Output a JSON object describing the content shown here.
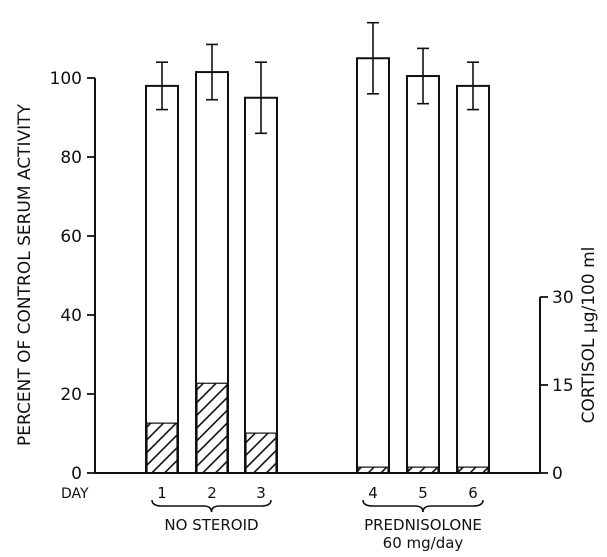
{
  "chart_data": {
    "type": "bar",
    "ylabel": "PERCENT OF CONTROL SERUM ACTIVITY",
    "y2label": "CORTISOL µg/100 ml",
    "ylim": [
      0,
      100
    ],
    "yticks": [
      "0",
      "20",
      "40",
      "60",
      "80",
      "100"
    ],
    "y2lim": [
      0,
      30
    ],
    "y2ticks": [
      "0",
      "15",
      "30"
    ],
    "x_prefix": "DAY",
    "categories": [
      "1",
      "2",
      "3",
      "4",
      "5",
      "6"
    ],
    "series": [
      {
        "values": [
          98,
          101.5,
          95,
          105,
          100.5,
          98
        ],
        "errors": [
          6,
          7,
          9,
          9,
          7,
          6
        ]
      },
      {
        "axis": "right",
        "values": [
          8.5,
          15.3,
          6.8,
          1,
          1,
          1
        ]
      }
    ],
    "groups": [
      {
        "label": "NO STEROID",
        "sublabel": "",
        "days": [
          "1",
          "2",
          "3"
        ]
      },
      {
        "label": "PREDNISOLONE",
        "sublabel": "60 mg/day",
        "days": [
          "4",
          "5",
          "6"
        ]
      }
    ]
  }
}
